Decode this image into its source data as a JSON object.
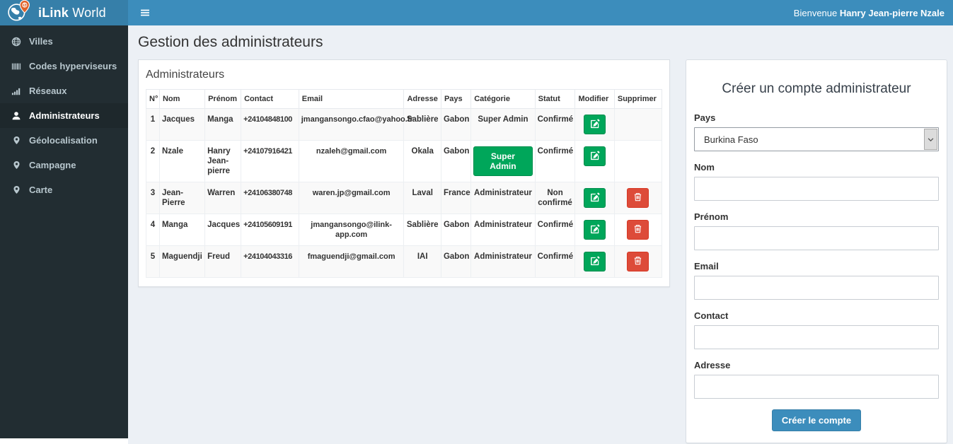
{
  "header": {
    "brand_bold": "iLink",
    "brand_regular": "World",
    "welcome_prefix": "Bienvenue",
    "welcome_name": "Hanry Jean-pierre Nzale"
  },
  "sidebar": {
    "items": [
      {
        "label": "Villes",
        "icon": "globe-icon",
        "active": false
      },
      {
        "label": "Codes hyperviseurs",
        "icon": "barcode-icon",
        "active": false
      },
      {
        "label": "Réseaux",
        "icon": "signal-icon",
        "active": false
      },
      {
        "label": "Administrateurs",
        "icon": "user-icon",
        "active": true
      },
      {
        "label": "Géolocalisation",
        "icon": "map-marker-icon",
        "active": false
      },
      {
        "label": "Campagne",
        "icon": "map-marker-icon",
        "active": false
      },
      {
        "label": "Carte",
        "icon": "map-marker-icon",
        "active": false
      }
    ]
  },
  "main": {
    "page_title": "Gestion des administrateurs",
    "panel_title": "Administrateurs",
    "table": {
      "columns": [
        "N°",
        "Nom",
        "Prénom",
        "Contact",
        "Email",
        "Adresse",
        "Pays",
        "Catégorie",
        "Statut",
        "Modifier",
        "Supprimer"
      ],
      "rows": [
        {
          "num": "1",
          "nom": "Jacques",
          "prenom": "Manga",
          "contact": "+24104848100",
          "email": "jmangansongo.cfao@yahoo.fr",
          "adresse": "Sablière",
          "pays": "Gabon",
          "categorie": "Super Admin",
          "categorie_style": "text",
          "statut": "Confirmé",
          "can_delete": false
        },
        {
          "num": "2",
          "nom": "Nzale",
          "prenom": "Hanry Jean-pierre",
          "contact": "+24107916421",
          "email": "nzaleh@gmail.com",
          "adresse": "Okala",
          "pays": "Gabon",
          "categorie": "Super Admin",
          "categorie_style": "button",
          "statut": "Confirmé",
          "can_delete": false
        },
        {
          "num": "3",
          "nom": "Jean-Pierre",
          "prenom": "Warren",
          "contact": "+24106380748",
          "email": "waren.jp@gmail.com",
          "adresse": "Laval",
          "pays": "France",
          "categorie": "Administrateur",
          "categorie_style": "text",
          "statut": "Non confirmé",
          "can_delete": true
        },
        {
          "num": "4",
          "nom": "Manga",
          "prenom": "Jacques",
          "contact": "+24105609191",
          "email": "jmangansongo@ilink-app.com",
          "adresse": "Sablière",
          "pays": "Gabon",
          "categorie": "Administrateur",
          "categorie_style": "text",
          "statut": "Confirmé",
          "can_delete": true
        },
        {
          "num": "5",
          "nom": "Maguendji",
          "prenom": "Freud",
          "contact": "+24104043316",
          "email": "fmaguendji@gmail.com",
          "adresse": "IAI",
          "pays": "Gabon",
          "categorie": "Administrateur",
          "categorie_style": "text",
          "statut": "Confirmé",
          "can_delete": true
        }
      ]
    }
  },
  "form": {
    "title": "Créer un compte administrateur",
    "fields": [
      {
        "key": "pays",
        "label": "Pays",
        "type": "select",
        "value": "Burkina Faso"
      },
      {
        "key": "nom",
        "label": "Nom",
        "type": "text",
        "value": ""
      },
      {
        "key": "prenom",
        "label": "Prénom",
        "type": "text",
        "value": ""
      },
      {
        "key": "email",
        "label": "Email",
        "type": "text",
        "value": ""
      },
      {
        "key": "contact",
        "label": "Contact",
        "type": "text",
        "value": ""
      },
      {
        "key": "adresse",
        "label": "Adresse",
        "type": "text",
        "value": ""
      }
    ],
    "submit_label": "Créer le compte"
  },
  "colors": {
    "navbar": "#3c8dbc",
    "logo_bg": "#367fa9",
    "sidebar_bg": "#222d32",
    "sidebar_active_bg": "#1e282c",
    "content_bg": "#ecf0f5",
    "success_green": "#00a65a",
    "danger_red": "#dd4b39",
    "primary_blue": "#3c8dbc",
    "pin_orange": "#e0622a"
  }
}
